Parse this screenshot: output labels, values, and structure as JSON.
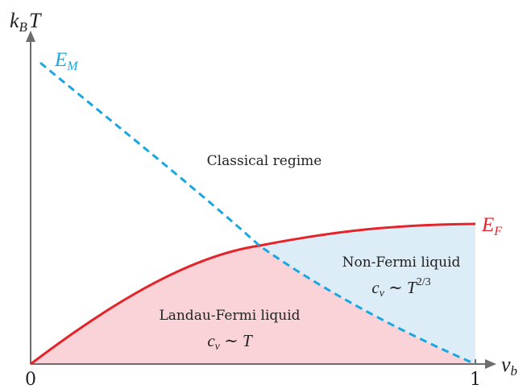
{
  "axes": {
    "y_label": "k",
    "y_label_sub": "B",
    "y_label_tail": "T",
    "x_label": "ν",
    "x_label_sub": "b",
    "x_tick_0": "0",
    "x_tick_1": "1"
  },
  "curves": {
    "em_label": "E",
    "em_label_sub": "M",
    "ef_label": "E",
    "ef_label_sub": "F"
  },
  "regions": {
    "classical": "Classical regime",
    "non_fermi": "Non-Fermi liquid",
    "non_fermi_law_c": "c",
    "non_fermi_law_sub": "v",
    "non_fermi_law_sim": " ∼ ",
    "non_fermi_law_T": "T",
    "non_fermi_law_exp": "2/3",
    "landau": "Landau-Fermi liquid",
    "landau_law_c": "c",
    "landau_law_sub": "v",
    "landau_law_sim": " ∼ ",
    "landau_law_T": "T"
  },
  "colors": {
    "axis": "#6d6d6d",
    "em_curve": "#1aa7e0",
    "ef_curve": "#e3242b",
    "landau_fill": "#f9d3d8",
    "non_fermi_fill": "#dcedf7",
    "text": "#222222"
  }
}
